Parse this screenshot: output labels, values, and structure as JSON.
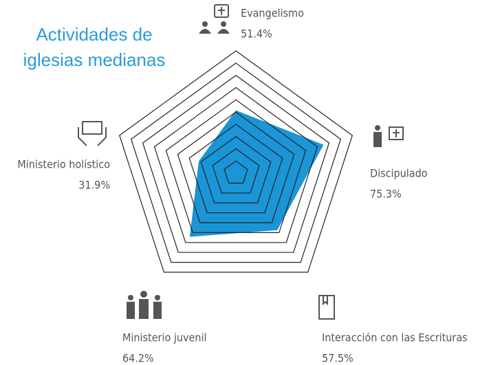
{
  "chart_data": {
    "type": "radar",
    "title": [
      "Actividades de",
      "iglesias medianas"
    ],
    "categories": [
      "Evangelismo",
      "Discipulado",
      "Interacción con las Escrituras",
      "Ministerio juvenil",
      "Ministerio holístico"
    ],
    "values": [
      51.4,
      75.3,
      57.5,
      64.2,
      31.9
    ],
    "value_labels": [
      "51.4%",
      "75.3%",
      "57.5%",
      "64.2%",
      "31.9%"
    ],
    "color": "#1a95d6",
    "rlim": [
      0,
      100
    ],
    "rticks": [
      10,
      20,
      30,
      40,
      50,
      60,
      70,
      80,
      90,
      100
    ]
  }
}
